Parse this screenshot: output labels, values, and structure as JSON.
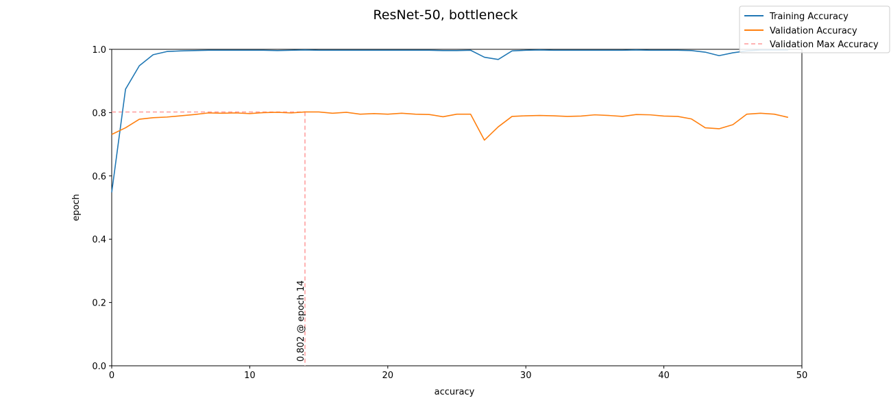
{
  "chart_data": {
    "type": "line",
    "title": "ResNet-50, bottleneck",
    "xlabel": "accuracy",
    "ylabel": "epoch",
    "xlim": [
      0,
      50
    ],
    "ylim": [
      0,
      1.0
    ],
    "xticks": [
      0,
      10,
      20,
      30,
      40,
      50
    ],
    "yticks": [
      0.0,
      0.2,
      0.4,
      0.6,
      0.8,
      1.0
    ],
    "xtick_labels": [
      "0",
      "10",
      "20",
      "30",
      "40",
      "50"
    ],
    "ytick_labels": [
      "0.0",
      "0.2",
      "0.4",
      "0.6",
      "0.8",
      "1.0"
    ],
    "grid": false,
    "legend_position": "top-right",
    "x": [
      0,
      1,
      2,
      3,
      4,
      5,
      6,
      7,
      8,
      9,
      10,
      11,
      12,
      13,
      14,
      15,
      16,
      17,
      18,
      19,
      20,
      21,
      22,
      23,
      24,
      25,
      26,
      27,
      28,
      29,
      30,
      31,
      32,
      33,
      34,
      35,
      36,
      37,
      38,
      39,
      40,
      41,
      42,
      43,
      44,
      45,
      46,
      47,
      48,
      49
    ],
    "series": [
      {
        "name": "Training Accuracy",
        "color": "#1f77b4",
        "values": [
          0.548,
          0.874,
          0.948,
          0.983,
          0.993,
          0.995,
          0.996,
          0.997,
          0.997,
          0.997,
          0.997,
          0.997,
          0.996,
          0.997,
          0.998,
          0.997,
          0.997,
          0.997,
          0.997,
          0.997,
          0.997,
          0.997,
          0.997,
          0.997,
          0.996,
          0.996,
          0.997,
          0.975,
          0.968,
          0.995,
          0.997,
          0.998,
          0.997,
          0.997,
          0.997,
          0.997,
          0.997,
          0.997,
          0.998,
          0.997,
          0.997,
          0.997,
          0.996,
          0.991,
          0.98,
          0.989,
          0.995,
          0.998,
          0.998,
          0.998
        ]
      },
      {
        "name": "Validation Accuracy",
        "color": "#ff7f0e",
        "values": [
          0.731,
          0.752,
          0.779,
          0.784,
          0.786,
          0.79,
          0.794,
          0.799,
          0.798,
          0.799,
          0.797,
          0.8,
          0.801,
          0.799,
          0.802,
          0.802,
          0.798,
          0.801,
          0.795,
          0.797,
          0.795,
          0.798,
          0.795,
          0.794,
          0.787,
          0.795,
          0.795,
          0.713,
          0.755,
          0.788,
          0.79,
          0.791,
          0.79,
          0.788,
          0.789,
          0.793,
          0.791,
          0.788,
          0.794,
          0.793,
          0.789,
          0.788,
          0.78,
          0.752,
          0.749,
          0.762,
          0.795,
          0.798,
          0.795,
          0.785
        ]
      }
    ],
    "reference": {
      "name": "Validation Max Accuracy",
      "color": "#ff9999",
      "value": 0.802,
      "epoch": 14
    },
    "annotation": "0.802 @ epoch 14"
  }
}
